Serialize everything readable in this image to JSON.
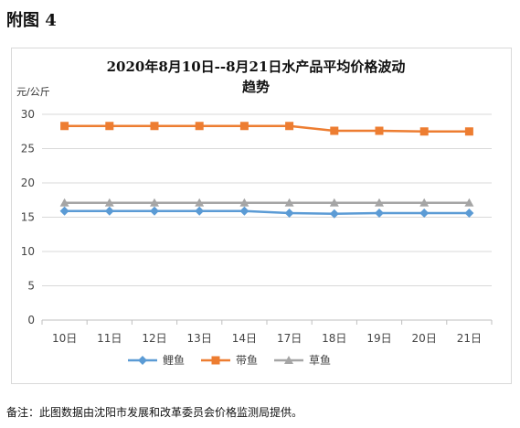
{
  "figure_label": "附图 4",
  "note": "备注：此图数据由沈阳市发展和改革委员会价格监测局提供。",
  "chart_data": {
    "type": "line",
    "title_line1": "2020年8月10日--8月21日水产品平均价格波动",
    "title_line2": "趋势",
    "unit_label": "元/公斤",
    "categories": [
      "10日",
      "11日",
      "12日",
      "13日",
      "14日",
      "17日",
      "18日",
      "19日",
      "20日",
      "21日"
    ],
    "ylim": [
      0,
      30
    ],
    "yticks": [
      0,
      5,
      10,
      15,
      20,
      25,
      30
    ],
    "grid": true,
    "legend_position": "bottom",
    "series": [
      {
        "name": "鲤鱼",
        "color": "#5b9bd5",
        "marker": "diamond",
        "values": [
          15.9,
          15.9,
          15.9,
          15.9,
          15.9,
          15.6,
          15.5,
          15.6,
          15.6,
          15.6
        ]
      },
      {
        "name": "带鱼",
        "color": "#ed7d31",
        "marker": "square",
        "values": [
          28.3,
          28.3,
          28.3,
          28.3,
          28.3,
          28.3,
          27.6,
          27.6,
          27.5,
          27.5
        ]
      },
      {
        "name": "草鱼",
        "color": "#a5a5a5",
        "marker": "triangle",
        "values": [
          17.1,
          17.1,
          17.1,
          17.1,
          17.1,
          17.1,
          17.1,
          17.1,
          17.1,
          17.1
        ]
      }
    ]
  }
}
